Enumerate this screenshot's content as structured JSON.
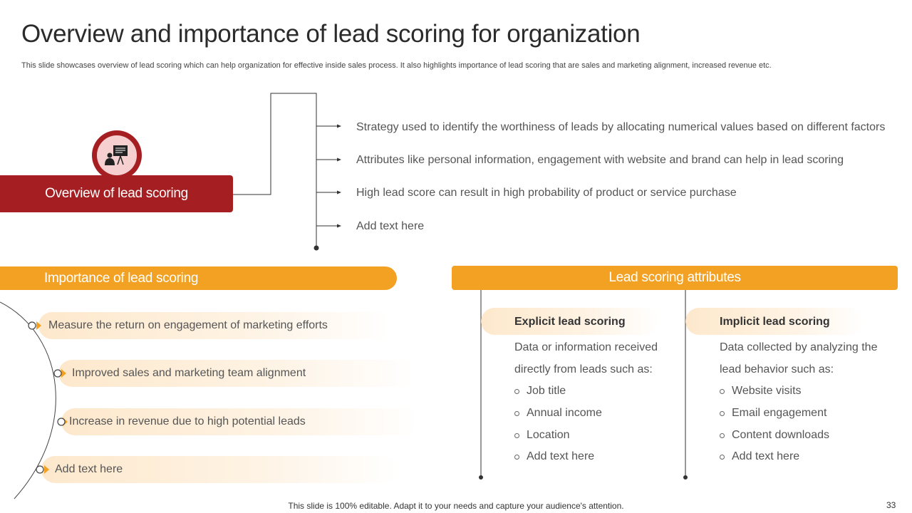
{
  "header": {
    "title": "Overview and importance of lead scoring for organization",
    "subtitle": "This slide showcases overview of lead scoring which can help organization for effective inside sales process. It also highlights importance of lead scoring that are sales and marketing alignment, increased revenue etc."
  },
  "overview": {
    "label": "Overview of lead scoring",
    "icon": "presentation-icon",
    "points": [
      "Strategy used to identify the worthiness of leads by allocating numerical values based on different factors",
      "Attributes like personal information, engagement with website and brand can help in lead scoring",
      "High lead score can result in high probability of product or service purchase",
      "Add text here"
    ]
  },
  "importance": {
    "label": "Importance of lead scoring",
    "items": [
      "Measure the return on engagement of marketing efforts",
      "Improved sales and marketing team alignment",
      "Increase in revenue due to high potential leads",
      "Add text here"
    ]
  },
  "attributes": {
    "label": "Lead scoring attributes",
    "explicit": {
      "title": "Explicit lead scoring",
      "desc_line1": "Data or information received",
      "desc_line2": "directly from leads such as:",
      "bullets": [
        "Job title",
        "Annual income",
        "Location",
        "Add text here"
      ]
    },
    "implicit": {
      "title": "Implicit lead scoring",
      "desc_line1": "Data collected by analyzing the",
      "desc_line2": "lead behavior such as:",
      "bullets": [
        "Website visits",
        "Email engagement",
        "Content downloads",
        "Add text here"
      ]
    }
  },
  "footer": {
    "note": "This slide is 100% editable. Adapt it to your needs and capture your audience's attention.",
    "page": "33"
  },
  "colors": {
    "primary_red": "#a51f22",
    "accent_orange": "#f2a122"
  }
}
